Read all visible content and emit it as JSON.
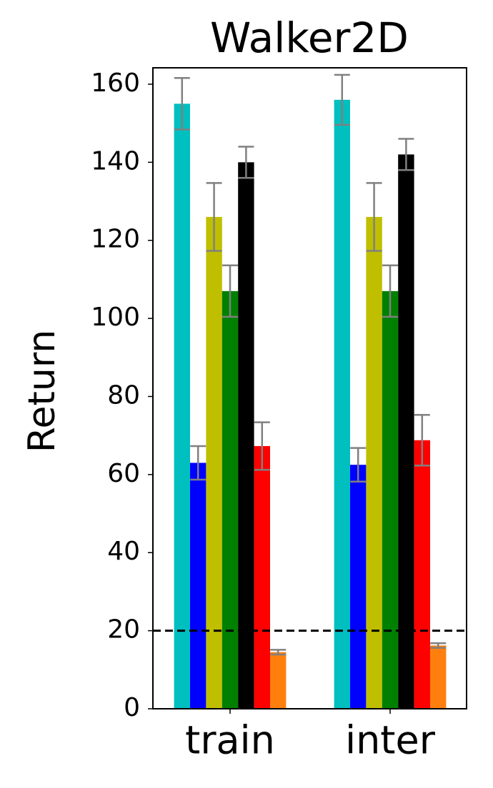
{
  "chart_data": {
    "type": "bar",
    "title": "Walker2D",
    "ylabel": "Return",
    "categories": [
      "train",
      "inter"
    ],
    "series": [
      {
        "color": "#00bfbf",
        "values": [
          155,
          156
        ],
        "errors": [
          6.6,
          6.4
        ]
      },
      {
        "color": "#0000ff",
        "values": [
          63,
          62.5
        ],
        "errors": [
          4.3,
          4.3
        ]
      },
      {
        "color": "#bfbf00",
        "values": [
          126,
          126
        ],
        "errors": [
          8.7,
          8.7
        ]
      },
      {
        "color": "#008000",
        "values": [
          107,
          107
        ],
        "errors": [
          6.6,
          6.6
        ]
      },
      {
        "color": "#000000",
        "values": [
          140,
          142
        ],
        "errors": [
          4,
          4
        ]
      },
      {
        "color": "#ff0000",
        "values": [
          67.3,
          68.8
        ],
        "errors": [
          6.1,
          6.5
        ]
      },
      {
        "color": "#ff7f0e",
        "values": [
          14.5,
          16.2
        ],
        "errors": [
          0.6,
          0.6
        ]
      }
    ],
    "error_color": "#808080",
    "hline": 20,
    "ylim": [
      0,
      164.2
    ],
    "yticks": [
      0,
      20,
      40,
      60,
      80,
      100,
      120,
      140,
      160
    ]
  }
}
